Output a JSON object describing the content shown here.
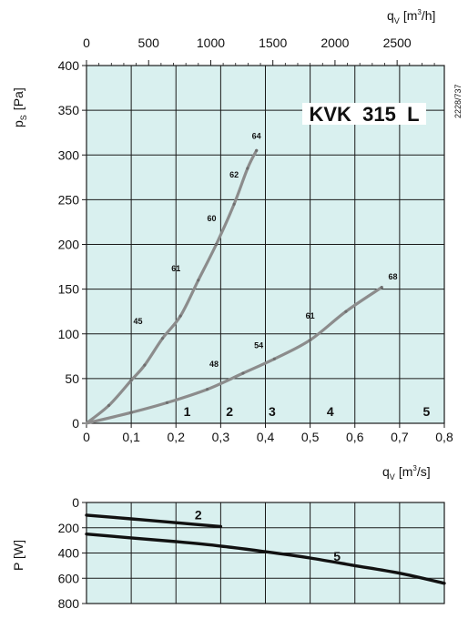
{
  "chart_data": [
    {
      "type": "line",
      "title": "KVK  315  L",
      "side_code": "2228/737",
      "xlabel": "q",
      "xlabel_sub": "V",
      "xlabel_unit_prefix": "[m",
      "xlabel_unit_sup": "3",
      "xlabel_unit_suffix": "/s]",
      "xlim": [
        0,
        0.8
      ],
      "x_ticks": [
        "0",
        "0,1",
        "0,2",
        "0,3",
        "0,4",
        "0,5",
        "0,6",
        "0,7",
        "0,8"
      ],
      "top_xlabel": "q",
      "top_xlabel_sub": "V",
      "top_xlabel_unit_prefix": "[m",
      "top_xlabel_unit_sup": "3",
      "top_xlabel_unit_suffix": "/h]",
      "top_xlim": [
        0,
        2880
      ],
      "top_x_ticks": [
        "0",
        "500",
        "1000",
        "1500",
        "2000",
        "2500"
      ],
      "top_x_tick_values": [
        0,
        500,
        1000,
        1500,
        2000,
        2500
      ],
      "ylabel": "p",
      "ylabel_sub": "S",
      "ylabel_unit": "[Pa]",
      "ylim": [
        0,
        400
      ],
      "y_ticks": [
        "0",
        "50",
        "100",
        "150",
        "200",
        "250",
        "300",
        "350",
        "400"
      ],
      "grid": true,
      "series": [
        {
          "x": [
            0,
            0.05,
            0.1,
            0.13,
            0.17,
            0.21,
            0.25,
            0.29,
            0.33,
            0.36,
            0.38
          ],
          "y": [
            0,
            20,
            48,
            65,
            95,
            120,
            160,
            200,
            245,
            285,
            305
          ]
        },
        {
          "x": [
            0,
            0.1,
            0.18,
            0.27,
            0.35,
            0.42,
            0.5,
            0.58,
            0.66
          ],
          "y": [
            0,
            12,
            23,
            38,
            56,
            72,
            93,
            125,
            152
          ]
        }
      ],
      "annotations": [
        {
          "text": "64",
          "x": 0.38,
          "y": 318
        },
        {
          "text": "62",
          "x": 0.33,
          "y": 275
        },
        {
          "text": "60",
          "x": 0.28,
          "y": 226
        },
        {
          "text": "61",
          "x": 0.2,
          "y": 170
        },
        {
          "text": "45",
          "x": 0.115,
          "y": 111
        },
        {
          "text": "48",
          "x": 0.285,
          "y": 63
        },
        {
          "text": "54",
          "x": 0.385,
          "y": 84
        },
        {
          "text": "61",
          "x": 0.5,
          "y": 117
        },
        {
          "text": "68",
          "x": 0.685,
          "y": 161
        }
      ],
      "zones": [
        {
          "text": "1",
          "x": 0.225,
          "y": 8
        },
        {
          "text": "2",
          "x": 0.32,
          "y": 8
        },
        {
          "text": "3",
          "x": 0.415,
          "y": 8
        },
        {
          "text": "4",
          "x": 0.545,
          "y": 8
        },
        {
          "text": "5",
          "x": 0.76,
          "y": 8
        }
      ]
    },
    {
      "type": "line",
      "ylabel": "P [W]",
      "ylim": [
        0,
        800
      ],
      "y_inverted": true,
      "y_ticks": [
        "0",
        "200",
        "400",
        "600",
        "800"
      ],
      "xlim": [
        0,
        0.8
      ],
      "grid": true,
      "series": [
        {
          "name": "2",
          "x": [
            0,
            0.1,
            0.2,
            0.3
          ],
          "y": [
            100,
            130,
            160,
            190
          ]
        },
        {
          "name": "5",
          "x": [
            0,
            0.1,
            0.2,
            0.3,
            0.4,
            0.5,
            0.6,
            0.7,
            0.8
          ],
          "y": [
            250,
            280,
            310,
            345,
            390,
            440,
            500,
            560,
            640
          ]
        }
      ],
      "annotations": [
        {
          "text": "2",
          "x": 0.25,
          "y": 135
        },
        {
          "text": "5",
          "x": 0.56,
          "y": 460
        }
      ]
    }
  ]
}
